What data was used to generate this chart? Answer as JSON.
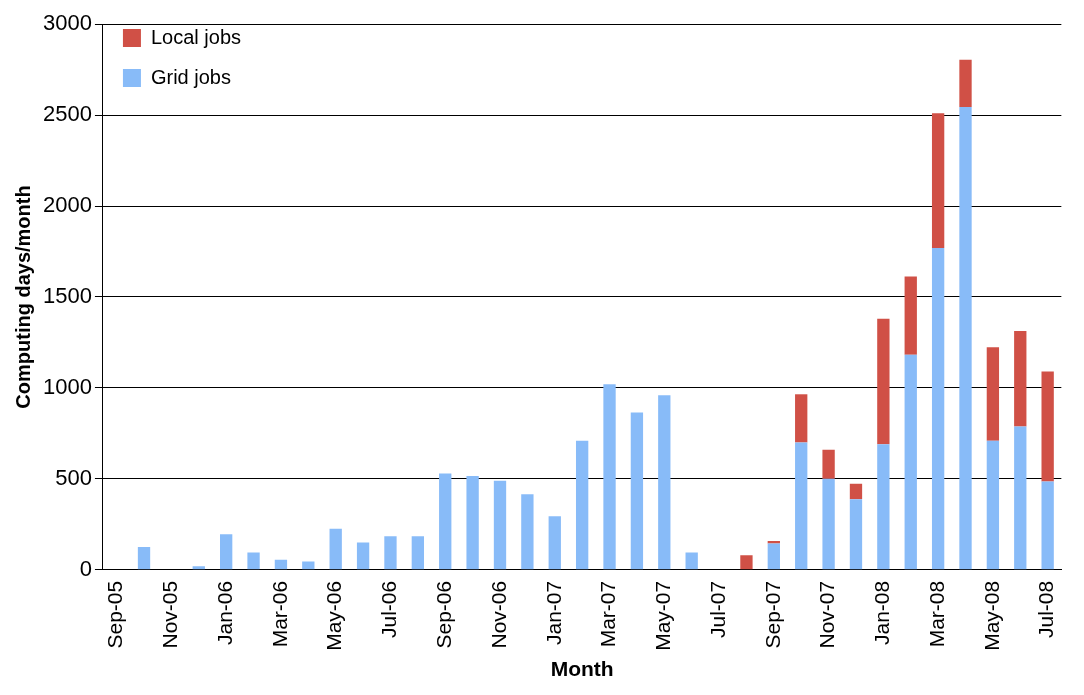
{
  "chart_data": {
    "type": "bar",
    "stacked": true,
    "xlabel": "Month",
    "ylabel": "Computing days/month",
    "categories": [
      "Sep-05",
      null,
      "Nov-05",
      null,
      "Jan-06",
      null,
      "Mar-06",
      null,
      "May-06",
      null,
      "Jul-06",
      null,
      "Sep-06",
      null,
      "Nov-06",
      null,
      "Jan-07",
      null,
      "Mar-07",
      null,
      "May-07",
      null,
      "Jul-07",
      null,
      "Sep-07",
      null,
      "Nov-07",
      null,
      "Jan-08",
      null,
      "Mar-08",
      null,
      "May-08",
      null,
      "Jul-08"
    ],
    "series": [
      {
        "name": "Grid jobs",
        "color": "#88bbf8",
        "values": [
          0,
          125,
          0,
          20,
          195,
          95,
          55,
          45,
          225,
          150,
          185,
          185,
          530,
          515,
          490,
          415,
          295,
          710,
          1020,
          865,
          960,
          95,
          0,
          0,
          145,
          700,
          500,
          388,
          690,
          1182,
          1770,
          2545,
          709,
          788,
          485
        ]
      },
      {
        "name": "Local jobs",
        "color": "#d05046",
        "values": [
          0,
          0,
          0,
          0,
          0,
          0,
          0,
          0,
          0,
          0,
          0,
          0,
          0,
          0,
          0,
          0,
          0,
          0,
          0,
          0,
          0,
          0,
          null,
          80,
          13,
          265,
          160,
          85,
          690,
          430,
          740,
          260,
          515,
          525,
          605
        ]
      }
    ],
    "ylim": [
      0,
      3000
    ],
    "yticks": [
      0,
      500,
      1000,
      1500,
      2000,
      2500,
      3000
    ],
    "grid": "y",
    "legend": "top left"
  }
}
